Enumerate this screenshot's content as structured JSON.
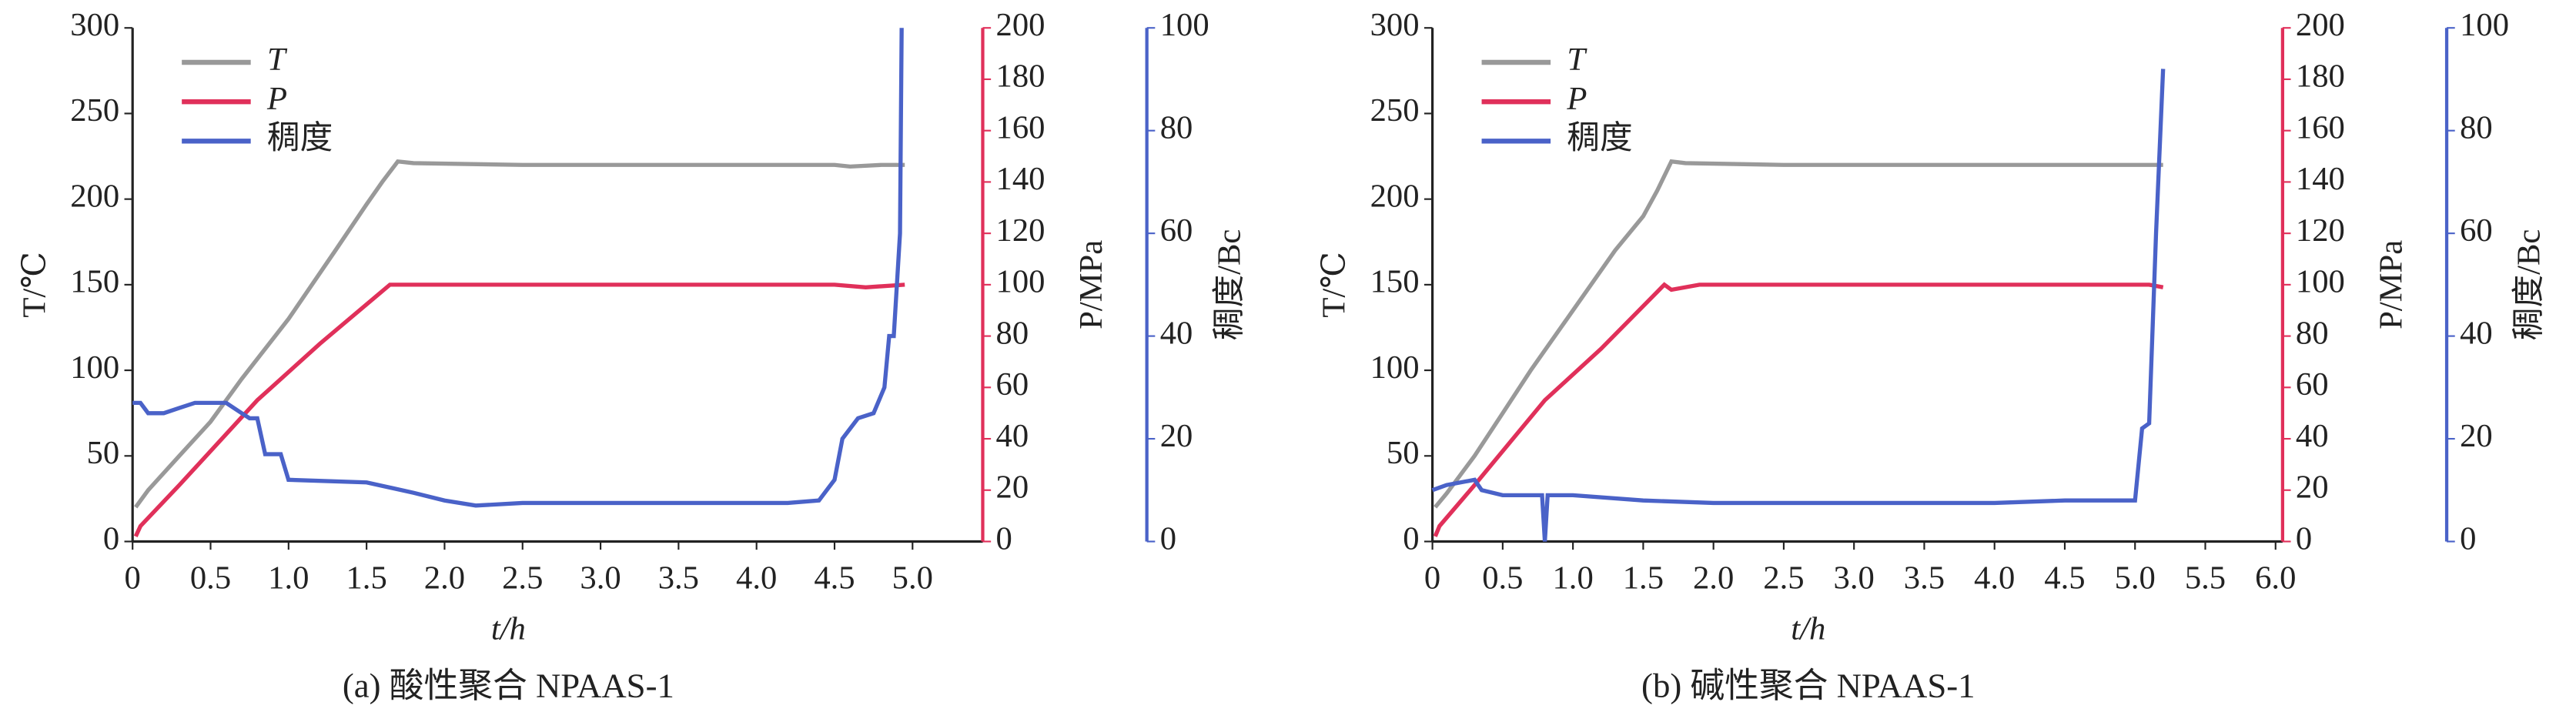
{
  "chart_data": [
    {
      "type": "line",
      "caption": "(a) 酸性聚合 NPAAS-1",
      "xlabel": "t/h",
      "ylabel": "T/℃",
      "y2label": "P/MPa",
      "y3label": "稠度/Bc",
      "legend": "upper left",
      "xlim": [
        0,
        5.45
      ],
      "xticks": [
        0,
        0.5,
        {
          "value": 1,
          "label": "1.0"
        },
        1.5,
        {
          "value": 2,
          "label": "2.0"
        },
        2.5,
        {
          "value": 3,
          "label": "3.0"
        },
        3.5,
        {
          "value": 4,
          "label": "4.0"
        },
        4.5,
        {
          "value": 5,
          "label": "5.0"
        }
      ],
      "ylim": [
        0,
        300
      ],
      "yticks": [
        0,
        50,
        100,
        150,
        200,
        250,
        300
      ],
      "y2lim": [
        0,
        200
      ],
      "y2ticks": [
        0,
        20,
        40,
        60,
        80,
        100,
        120,
        140,
        160,
        180,
        200
      ],
      "y3lim": [
        0,
        100
      ],
      "y3ticks": [
        0,
        20,
        40,
        60,
        80,
        100
      ],
      "series": [
        {
          "name": "T",
          "color": "#999999",
          "axis": "y",
          "x": [
            0.02,
            0.1,
            0.3,
            0.5,
            0.7,
            1.0,
            1.3,
            1.5,
            1.6,
            1.7,
            1.8,
            2.5,
            3.5,
            4.5,
            4.6,
            4.8,
            4.95
          ],
          "values": [
            20,
            30,
            50,
            70,
            95,
            130,
            170,
            197,
            210,
            222,
            221,
            220,
            220,
            220,
            219,
            220,
            220
          ]
        },
        {
          "name": "P",
          "color": "#e0305a",
          "axis": "y2",
          "x": [
            0.02,
            0.05,
            0.3,
            0.8,
            1.2,
            1.65,
            1.7,
            2.5,
            3.5,
            4.5,
            4.7,
            4.95
          ],
          "values": [
            2,
            6,
            22,
            55,
            77,
            100,
            100,
            100,
            100,
            100,
            99,
            100
          ]
        },
        {
          "name": "稠度",
          "color": "#4a62c8",
          "axis": "y3",
          "x": [
            0,
            0.05,
            0.1,
            0.2,
            0.3,
            0.4,
            0.5,
            0.6,
            0.7,
            0.75,
            0.8,
            0.85,
            0.95,
            1.0,
            1.5,
            1.8,
            2.0,
            2.2,
            2.5,
            3.0,
            3.5,
            4.0,
            4.2,
            4.4,
            4.5,
            4.55,
            4.65,
            4.75,
            4.82,
            4.85,
            4.88,
            4.92,
            4.93
          ],
          "values": [
            27,
            27,
            25,
            25,
            26,
            27,
            27,
            27,
            25,
            24,
            24,
            17,
            17,
            12,
            11.5,
            9.5,
            8,
            7,
            7.5,
            7.5,
            7.5,
            7.5,
            7.5,
            8,
            12,
            20,
            24,
            25,
            30,
            40,
            40,
            60,
            100
          ]
        }
      ]
    },
    {
      "type": "line",
      "caption": "(b) 碱性聚合 NPAAS-1",
      "xlabel": "t/h",
      "ylabel": "T/℃",
      "y2label": "P/MPa",
      "y3label": "稠度/Bc",
      "legend": "upper left",
      "xlim": [
        0,
        6.05
      ],
      "xticks": [
        0,
        0.5,
        {
          "value": 1,
          "label": "1.0"
        },
        1.5,
        {
          "value": 2,
          "label": "2.0"
        },
        2.5,
        {
          "value": 3,
          "label": "3.0"
        },
        3.5,
        {
          "value": 4,
          "label": "4.0"
        },
        4.5,
        {
          "value": 5,
          "label": "5.0"
        },
        5.5,
        {
          "value": 6,
          "label": "6.0"
        }
      ],
      "ylim": [
        0,
        300
      ],
      "yticks": [
        0,
        50,
        100,
        150,
        200,
        250,
        300
      ],
      "y2lim": [
        0,
        200
      ],
      "y2ticks": [
        0,
        20,
        40,
        60,
        80,
        100,
        120,
        140,
        160,
        180,
        200
      ],
      "y3lim": [
        0,
        100
      ],
      "y3ticks": [
        0,
        20,
        40,
        60,
        80,
        100
      ],
      "series": [
        {
          "name": "T",
          "color": "#999999",
          "axis": "y",
          "x": [
            0.02,
            0.1,
            0.3,
            0.5,
            0.7,
            1.0,
            1.3,
            1.5,
            1.6,
            1.7,
            1.8,
            2.5,
            3.5,
            4.5,
            5.0,
            5.2
          ],
          "values": [
            20,
            28,
            50,
            75,
            100,
            135,
            170,
            190,
            205,
            222,
            221,
            220,
            220,
            220,
            220,
            220
          ]
        },
        {
          "name": "P",
          "color": "#e0305a",
          "axis": "y2",
          "x": [
            0.02,
            0.05,
            0.3,
            0.8,
            1.2,
            1.65,
            1.7,
            1.9,
            2.5,
            3.5,
            4.5,
            5.1,
            5.2
          ],
          "values": [
            2,
            6,
            22,
            55,
            75,
            100,
            98,
            100,
            100,
            100,
            100,
            100,
            99
          ]
        },
        {
          "name": "稠度",
          "color": "#4a62c8",
          "axis": "y3",
          "x": [
            0,
            0.1,
            0.3,
            0.35,
            0.5,
            0.78,
            0.8,
            0.82,
            1.0,
            1.5,
            2.0,
            3.0,
            4.0,
            4.5,
            5.0,
            5.05,
            5.1,
            5.15,
            5.2
          ],
          "values": [
            10,
            11,
            12,
            10,
            9,
            9,
            0,
            9,
            9,
            8,
            7.5,
            7.5,
            7.5,
            8,
            8,
            22,
            23,
            60,
            92
          ]
        }
      ]
    }
  ]
}
